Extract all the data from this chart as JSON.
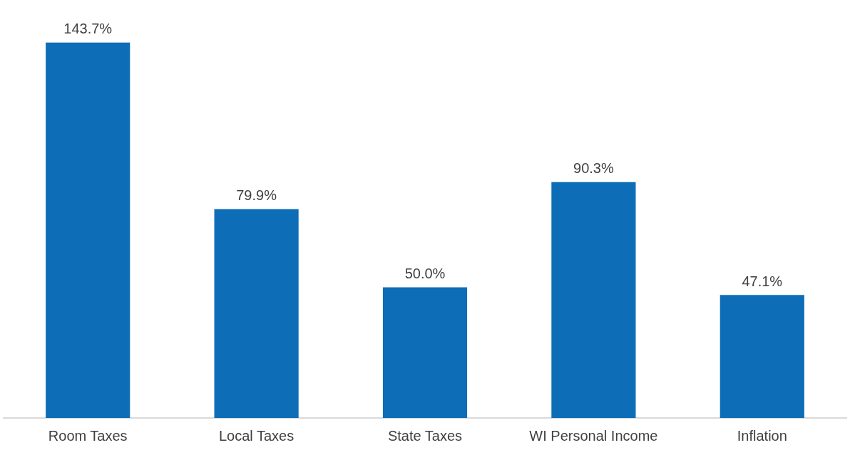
{
  "chart_data": {
    "type": "bar",
    "categories": [
      "Room Taxes",
      "Local Taxes",
      "State Taxes",
      "WI Personal Income",
      "Inflation"
    ],
    "values": [
      143.7,
      79.9,
      50.0,
      90.3,
      47.1
    ],
    "value_labels": [
      "143.7%",
      "79.9%",
      "50.0%",
      "90.3%",
      "47.1%"
    ],
    "color": "#0e6db7",
    "grid": false,
    "legend": false
  }
}
